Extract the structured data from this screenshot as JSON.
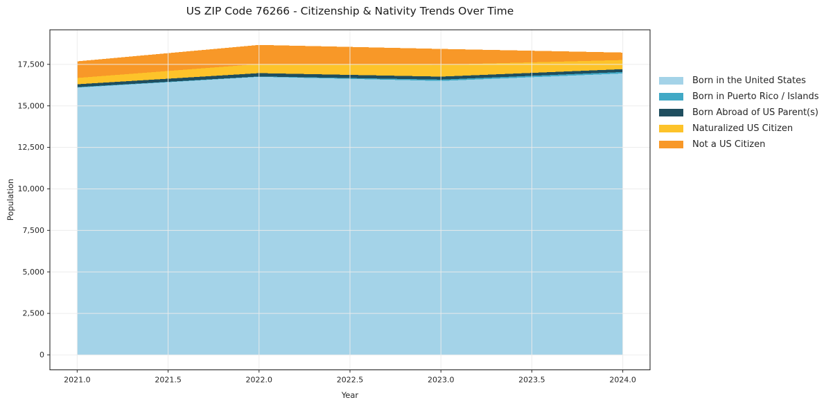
{
  "title": "US ZIP Code 76266 - Citizenship & Nativity Trends Over Time",
  "chart_data": {
    "type": "area",
    "stacked": true,
    "title": "US ZIP Code 76266 - Citizenship & Nativity Trends Over Time",
    "xlabel": "Year",
    "ylabel": "Population",
    "x": [
      2021,
      2022,
      2023,
      2024
    ],
    "series": [
      {
        "name": "Born in the United States",
        "color": "#A4D3E8",
        "values": [
          16100,
          16750,
          16500,
          16950
        ]
      },
      {
        "name": "Born in Puerto Rico / Islands",
        "color": "#41A9C6",
        "values": [
          30,
          20,
          80,
          90
        ]
      },
      {
        "name": "Born Abroad of US Parent(s)",
        "color": "#1F4E5F",
        "values": [
          170,
          200,
          180,
          170
        ]
      },
      {
        "name": "Naturalized US Citizen",
        "color": "#FDC32A",
        "values": [
          380,
          550,
          720,
          550
        ]
      },
      {
        "name": "Not a US Citizen",
        "color": "#F89828",
        "values": [
          1000,
          1150,
          950,
          450
        ]
      }
    ],
    "x_ticks": [
      2021.0,
      2021.5,
      2022.0,
      2022.5,
      2023.0,
      2023.5,
      2024.0
    ],
    "x_tick_labels": [
      "2021.0",
      "2021.5",
      "2022.0",
      "2022.5",
      "2023.0",
      "2023.5",
      "2024.0"
    ],
    "y_ticks": [
      0,
      2500,
      5000,
      7500,
      10000,
      12500,
      15000,
      17500
    ],
    "y_tick_labels": [
      "0",
      "2,500",
      "5,000",
      "7,500",
      "10,000",
      "12,500",
      "15,000",
      "17,500"
    ],
    "xlim": [
      2020.85,
      2024.15
    ],
    "ylim": [
      -900,
      19580
    ],
    "grid": true,
    "grid_color": "rgba(235,235,235,0.95)",
    "spine_color": "#262626",
    "tick_text_color": "#262626",
    "legend_position": "right-outside"
  }
}
